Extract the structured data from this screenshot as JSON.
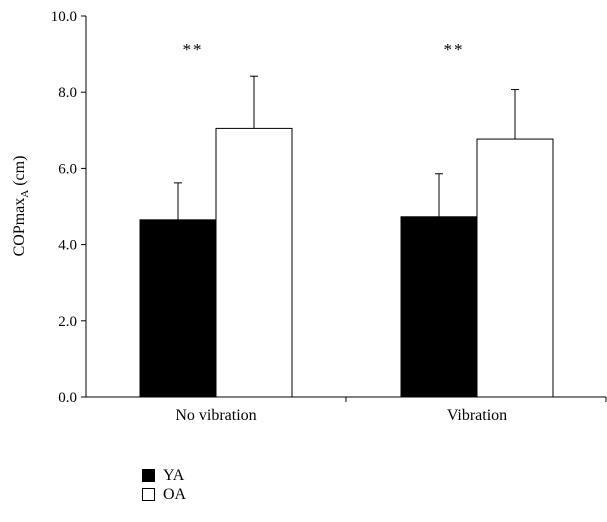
{
  "chart_data": {
    "type": "bar",
    "categories": [
      "No vibration",
      "Vibration"
    ],
    "series": [
      {
        "name": "YA",
        "values": [
          4.65,
          4.73
        ],
        "errors": [
          0.97,
          1.13
        ],
        "color": "#000000"
      },
      {
        "name": "OA",
        "values": [
          7.05,
          6.77
        ],
        "errors": [
          1.37,
          1.3
        ],
        "color": "#ffffff"
      }
    ],
    "significance": [
      "**",
      "**"
    ],
    "ylabel": {
      "main": "COPmax",
      "subscript": "A",
      "unit": " (cm)"
    },
    "yticks": [
      "0.0",
      "2.0",
      "4.0",
      "6.0",
      "8.0",
      "10.0"
    ],
    "ylim": [
      0,
      10
    ],
    "grid": false,
    "legend_position": "bottom-left"
  }
}
